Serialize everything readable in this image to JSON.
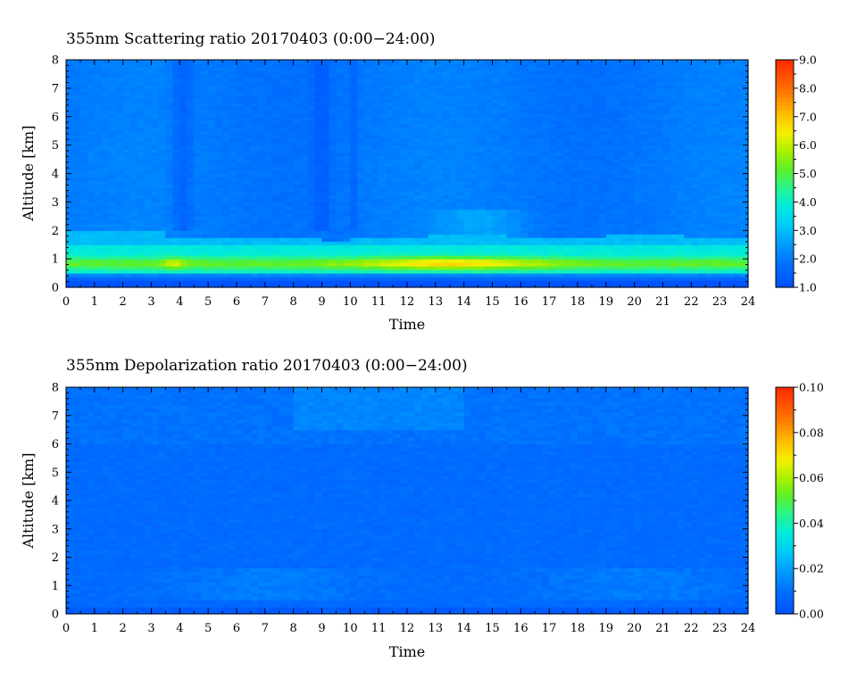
{
  "chart_data": [
    {
      "type": "heatmap",
      "title": "355nm Scattering ratio  20170403 (0:00−24:00)",
      "xlabel": "Time",
      "ylabel": "Altitude [km]",
      "xlim": [
        0,
        24
      ],
      "ylim": [
        0,
        8
      ],
      "x_ticks": [
        "0",
        "1",
        "2",
        "3",
        "4",
        "5",
        "6",
        "7",
        "8",
        "9",
        "10",
        "11",
        "12",
        "13",
        "14",
        "15",
        "16",
        "17",
        "18",
        "19",
        "20",
        "21",
        "22",
        "23",
        "24"
      ],
      "y_ticks": [
        "0",
        "1",
        "2",
        "3",
        "4",
        "5",
        "6",
        "7",
        "8"
      ],
      "colorbar": {
        "min": 1.0,
        "max": 9.0,
        "tick_labels": [
          "1.0",
          "2.0",
          "3.0",
          "4.0",
          "5.0",
          "6.0",
          "7.0",
          "8.0",
          "9.0"
        ],
        "tick_values": [
          1,
          2,
          3,
          4,
          5,
          6,
          7,
          8,
          9
        ]
      },
      "description_levels": {
        "free_troposphere": 2.0,
        "boundary_layer_top_km": 1.9,
        "aerosol_layer_peak": 5.8,
        "near_surface": 1.2
      }
    },
    {
      "type": "heatmap",
      "title": "355nm Depolarization ratio  20170403 (0:00−24:00)",
      "xlabel": "Time",
      "ylabel": "Altitude [km]",
      "xlim": [
        0,
        24
      ],
      "ylim": [
        0,
        8
      ],
      "x_ticks": [
        "0",
        "1",
        "2",
        "3",
        "4",
        "5",
        "6",
        "7",
        "8",
        "9",
        "10",
        "11",
        "12",
        "13",
        "14",
        "15",
        "16",
        "17",
        "18",
        "19",
        "20",
        "21",
        "22",
        "23",
        "24"
      ],
      "y_ticks": [
        "0",
        "1",
        "2",
        "3",
        "4",
        "5",
        "6",
        "7",
        "8"
      ],
      "colorbar": {
        "min": 0.0,
        "max": 0.1,
        "tick_labels": [
          "0.00",
          "0.02",
          "0.04",
          "0.06",
          "0.08",
          "0.10"
        ],
        "tick_values": [
          0.0,
          0.02,
          0.04,
          0.06,
          0.08,
          0.1
        ]
      }
    }
  ]
}
